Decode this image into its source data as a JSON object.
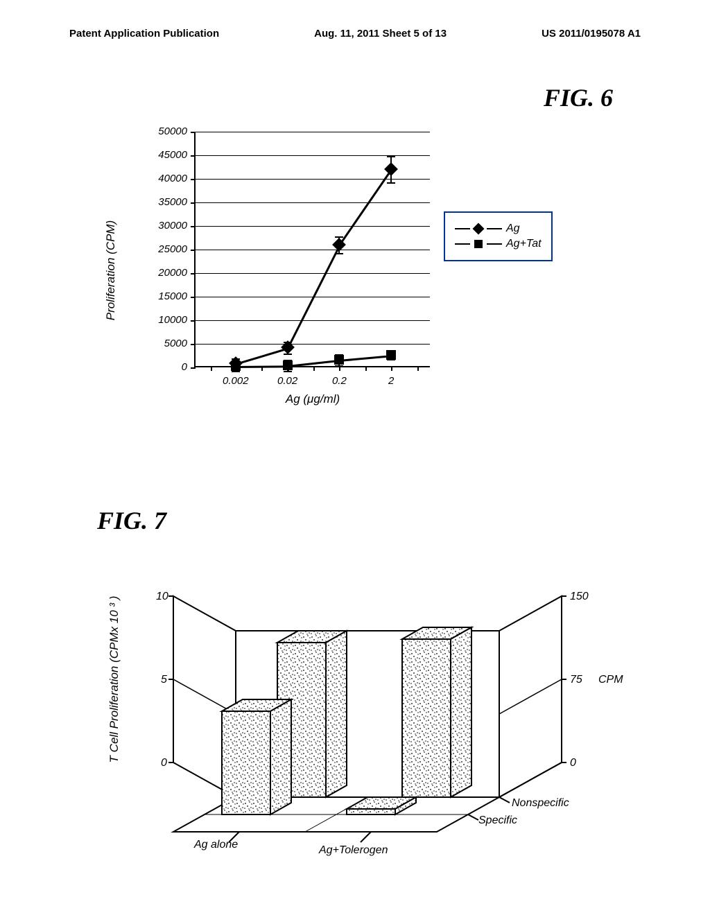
{
  "header": {
    "left": "Patent Application Publication",
    "center": "Aug. 11, 2011  Sheet 5 of 13",
    "right": "US 2011/0195078 A1"
  },
  "fig6": {
    "title": "FIG. 6",
    "type": "line",
    "xaxis_title": "Ag (μg/ml)",
    "yaxis_title": "Proliferation (CPM)",
    "x_categories": [
      "0.002",
      "0.02",
      "0.2",
      "2"
    ],
    "x_positions": [
      0.17,
      0.39,
      0.61,
      0.83
    ],
    "x_minor_ticks": [
      0.065,
      0.28,
      0.5,
      0.72,
      0.94
    ],
    "ylim": [
      0,
      50000
    ],
    "ytick_step": 5000,
    "series": [
      {
        "name": "Ag",
        "marker": "diamond",
        "values": [
          900,
          4200,
          26000,
          42000
        ],
        "errors": [
          1000,
          1200,
          1800,
          2800
        ]
      },
      {
        "name": "Ag+Tat",
        "marker": "square",
        "values": [
          300,
          400,
          1600,
          2600
        ],
        "errors": [
          1000,
          1200,
          1200,
          900
        ]
      }
    ],
    "legend": {
      "items": [
        "Ag",
        "Ag+Tat"
      ]
    },
    "colors": {
      "axis": "#000000",
      "grid": "#000000",
      "series": "#000000",
      "legend_border": "#003399"
    }
  },
  "fig7": {
    "title": "FIG. 7",
    "type": "bar3d",
    "yaxis_title_left": "T Cell Proliferation (CPMx 10 ³ )",
    "yaxis_label_right": "CPM",
    "left_scale": {
      "min": 0,
      "max": 10,
      "ticks": [
        0,
        5,
        10
      ]
    },
    "right_scale": {
      "min": 0,
      "max": 150,
      "ticks": [
        0,
        75,
        150
      ]
    },
    "x_categories": [
      "Ag alone",
      "Ag+Tolerogen"
    ],
    "depth_categories": [
      "Specific",
      "Nonspecific"
    ],
    "bars": [
      {
        "x": "Ag alone",
        "depth": "Specific",
        "value": 6.2
      },
      {
        "x": "Ag alone",
        "depth": "Nonspecific",
        "value": 9.3
      },
      {
        "x": "Ag+Tolerogen",
        "depth": "Specific",
        "value": 0.35
      },
      {
        "x": "Ag+Tolerogen",
        "depth": "Nonspecific",
        "value": 9.5
      }
    ],
    "bar_fill": "#ffffff",
    "bar_stroke": "#000000",
    "bar_texture": "speckle",
    "background": "#ffffff"
  }
}
